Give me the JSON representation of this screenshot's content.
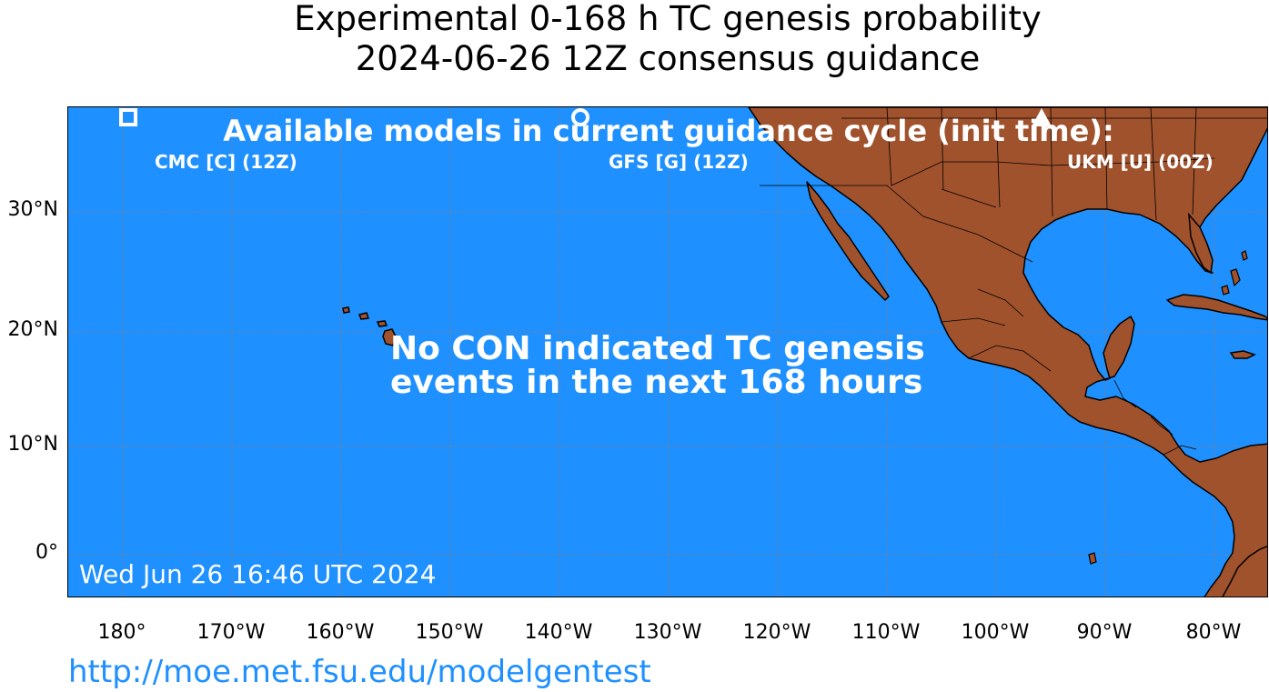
{
  "title": {
    "line1": "Experimental 0-168 h TC genesis probability",
    "line2": "2024-06-26 12Z consensus guidance"
  },
  "legend": {
    "heading": "Available models in current guidance cycle (init time):",
    "models": [
      {
        "label": "CMC [C] (12Z)",
        "marker": "square"
      },
      {
        "label": "GFS [G] (12Z)",
        "marker": "circle"
      },
      {
        "label": "UKM [U] (00Z)",
        "marker": "triangle"
      }
    ]
  },
  "message": {
    "line1": "No CON indicated TC genesis",
    "line2": "events in the next 168 hours"
  },
  "timestamp": "Wed Jun 26 16:46 UTC 2024",
  "axes": {
    "lat_labels": [
      "30°N",
      "20°N",
      "10°N",
      "0°"
    ],
    "lon_labels": [
      "180°",
      "170°W",
      "160°W",
      "150°W",
      "140°W",
      "130°W",
      "120°W",
      "110°W",
      "100°W",
      "90°W",
      "80°W"
    ]
  },
  "url": "http://moe.met.fsu.edu/modelgentest",
  "colors": {
    "ocean": "#1e90ff",
    "land": "#a0522d",
    "gridline": "#808080",
    "url": "#1e90ff"
  }
}
